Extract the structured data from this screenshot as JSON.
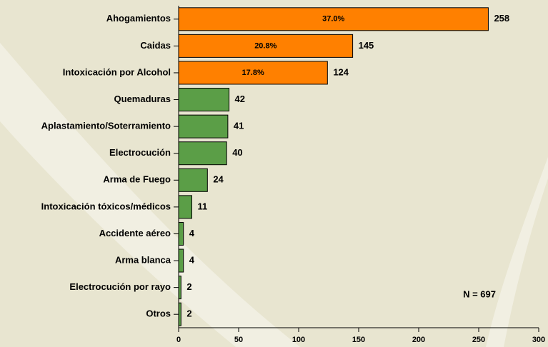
{
  "chart_data": {
    "type": "bar",
    "orientation": "horizontal",
    "categories": [
      "Ahogamientos",
      "Caidas",
      "Intoxicación por Alcohol",
      "Quemaduras",
      "Aplastamiento/Soterramiento",
      "Electrocución",
      "Arma de Fuego",
      "Intoxicación tóxicos/médicos",
      "Accidente aéreo",
      "Arma blanca",
      "Electrocución por rayo",
      "Otros"
    ],
    "values": [
      258,
      145,
      124,
      42,
      41,
      40,
      24,
      11,
      4,
      4,
      2,
      2
    ],
    "colors": [
      "#ff8000",
      "#ff8000",
      "#ff8000",
      "#5b9e47",
      "#5b9e47",
      "#5b9e47",
      "#5b9e47",
      "#5b9e47",
      "#5b9e47",
      "#5b9e47",
      "#5b9e47",
      "#5b9e47"
    ],
    "shares": {
      "values": [
        37.0,
        20.8,
        17.8,
        null,
        null,
        null,
        null,
        null,
        null,
        null,
        null,
        null
      ],
      "value_labels": [
        "37.0%",
        "20.8%",
        "17.8%",
        null,
        null,
        null,
        null,
        null,
        null,
        null,
        null,
        null
      ]
    },
    "annotation": "N = 697",
    "xlim": [
      0,
      300
    ],
    "xticks": [
      0,
      50,
      100,
      150,
      200,
      250,
      300
    ]
  }
}
